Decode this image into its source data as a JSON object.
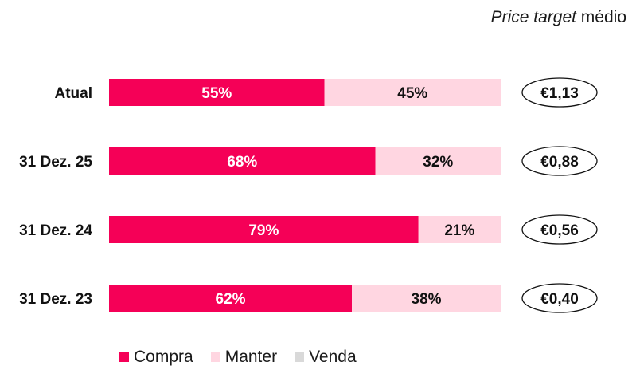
{
  "header": {
    "title_italic": "Price target",
    "title_rest": " médio"
  },
  "chart_data": {
    "type": "bar",
    "orientation": "horizontal",
    "stacked": true,
    "title": "Price target médio",
    "categories": [
      "Atual",
      "31 Dez. 25",
      "31 Dez. 24",
      "31 Dez. 23"
    ],
    "series": [
      {
        "name": "Compra",
        "color": "#f50057",
        "values": [
          55,
          68,
          79,
          62
        ]
      },
      {
        "name": "Manter",
        "color": "#ffd6e1",
        "values": [
          45,
          32,
          21,
          38
        ]
      },
      {
        "name": "Venda",
        "color": "#d9d9d9",
        "values": [
          0,
          0,
          0,
          0
        ]
      }
    ],
    "value_labels": {
      "Compra": [
        "55%",
        "68%",
        "79%",
        "62%"
      ],
      "Manter": [
        "45%",
        "32%",
        "21%",
        "38%"
      ]
    },
    "price_targets": [
      "€1,13",
      "€0,88",
      "€0,56",
      "€0,40"
    ],
    "xlim": [
      0,
      100
    ],
    "grid": false,
    "legend": "bottom"
  }
}
